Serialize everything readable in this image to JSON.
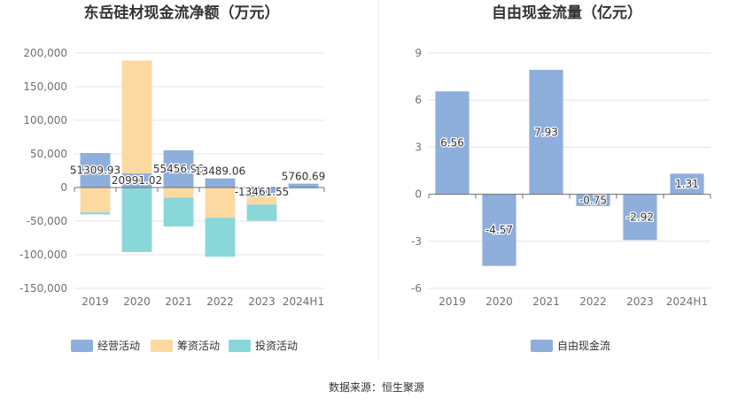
{
  "colors": {
    "operating": "#8eaedb",
    "financing": "#fcd9a1",
    "investing": "#8ad7da",
    "free_cash_flow": "#8eaedb",
    "grid": "#e3e3ec",
    "axis_text": "#6e7079",
    "title": "#333333"
  },
  "source_text": "数据来源：恒生聚源",
  "chart_data": [
    {
      "type": "bar",
      "stacked": true,
      "title": "东岳硅材现金流净额（万元）",
      "categories": [
        "2019",
        "2020",
        "2021",
        "2022",
        "2023",
        "2024H1"
      ],
      "ylim": [
        -150000,
        200000
      ],
      "yticks": [
        -150000,
        -100000,
        -50000,
        0,
        50000,
        100000,
        150000,
        200000
      ],
      "ytick_labels": [
        "-150,000",
        "-100,000",
        "-50,000",
        "0",
        "50,000",
        "100,000",
        "150,000",
        "200,000"
      ],
      "grid": true,
      "legend_position": "bottom",
      "series": [
        {
          "name": "经营活动",
          "color_key": "operating",
          "values": [
            51309.93,
            20991.02,
            55456.96,
            13489.06,
            -13461.55,
            5760.69
          ]
        },
        {
          "name": "筹资活动",
          "color_key": "financing",
          "values": [
            -37000,
            168000,
            -15000,
            -45000,
            -12000,
            -800
          ]
        },
        {
          "name": "投资活动",
          "color_key": "investing",
          "values": [
            -3000,
            -96000,
            -43000,
            -58000,
            -24000,
            -400
          ]
        }
      ],
      "data_labels": [
        "51309.93",
        "20991.02",
        "55456.96",
        "13489.06",
        "-13461.55",
        "5760.69"
      ]
    },
    {
      "type": "bar",
      "title": "自由现金流量（亿元）",
      "categories": [
        "2019",
        "2020",
        "2021",
        "2022",
        "2023",
        "2024H1"
      ],
      "ylim": [
        -6,
        9
      ],
      "yticks": [
        -6,
        -3,
        0,
        3,
        6,
        9
      ],
      "ytick_labels": [
        "-6",
        "-3",
        "0",
        "3",
        "6",
        "9"
      ],
      "grid": true,
      "legend_position": "bottom",
      "series": [
        {
          "name": "自由现金流",
          "color_key": "free_cash_flow",
          "values": [
            6.56,
            -4.57,
            7.93,
            -0.75,
            -2.92,
            1.31
          ]
        }
      ],
      "data_labels": [
        "6.56",
        "-4.57",
        "7.93",
        "-0.75",
        "-2.92",
        "1.31"
      ]
    }
  ]
}
